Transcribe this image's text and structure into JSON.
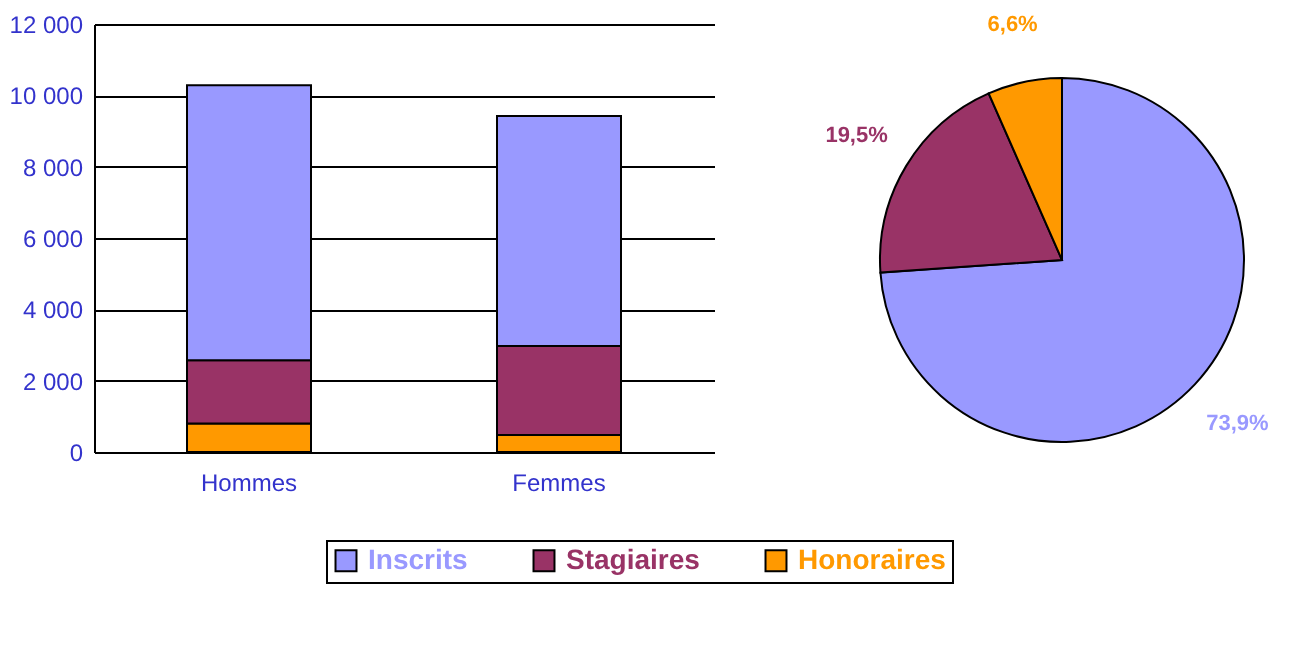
{
  "chart_data": [
    {
      "type": "bar",
      "stacked": true,
      "categories": [
        "Hommes",
        "Femmes"
      ],
      "series": [
        {
          "name": "Honoraires",
          "color": "#ff9900",
          "values": [
            800,
            480
          ]
        },
        {
          "name": "Stagiaires",
          "color": "#993366",
          "values": [
            1770,
            2490
          ]
        },
        {
          "name": "Inscrits",
          "color": "#9999ff",
          "values": [
            7710,
            6450
          ]
        }
      ],
      "ylim": [
        0,
        12000
      ],
      "yticks": [
        0,
        {
          "value": 2000,
          "label": "2 000"
        },
        {
          "value": 4000,
          "label": "4 000"
        },
        {
          "value": 6000,
          "label": "6 000"
        },
        {
          "value": 8000,
          "label": "8 000"
        },
        {
          "value": 10000,
          "label": "10 000"
        },
        {
          "value": 12000,
          "label": "12 000"
        }
      ],
      "grid": "y",
      "legend": "bottom"
    },
    {
      "type": "pie",
      "categories": [
        null,
        null,
        null
      ],
      "values": [
        73.9,
        19.5,
        6.6
      ],
      "colors": [
        "#9999ff",
        "#993366",
        "#ff9900"
      ],
      "value_labels": [
        "73,9%",
        "19,5%",
        "6,6%"
      ]
    }
  ]
}
